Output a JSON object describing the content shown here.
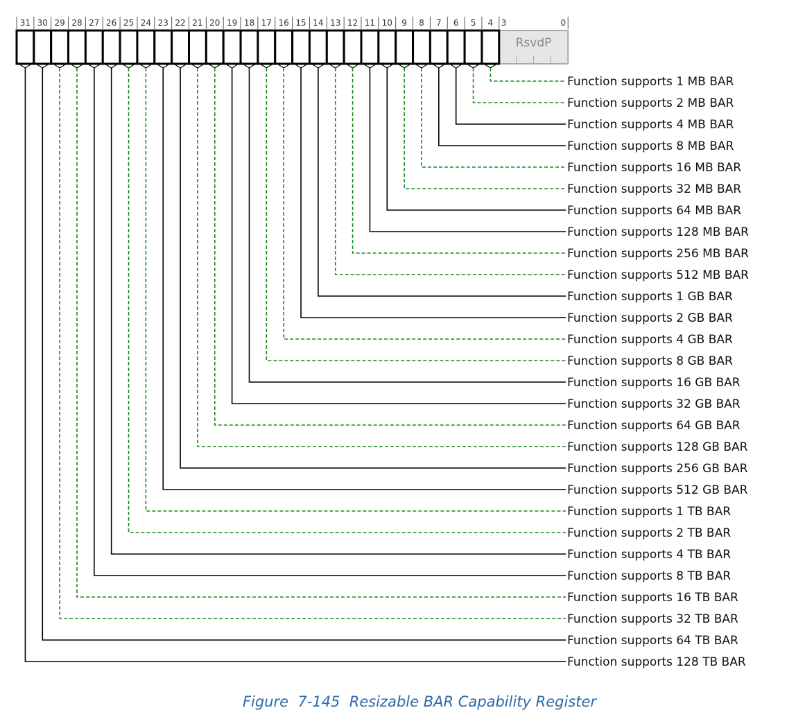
{
  "register": {
    "bit_numbers": [
      "31",
      "30",
      "29",
      "28",
      "27",
      "26",
      "25",
      "24",
      "23",
      "22",
      "21",
      "20",
      "19",
      "18",
      "17",
      "16",
      "15",
      "14",
      "13",
      "12",
      "11",
      "10",
      "9",
      "8",
      "7",
      "6",
      "5",
      "4"
    ],
    "reserved": {
      "high_bit": "3",
      "low_bit": "0",
      "label": "RsvdP"
    }
  },
  "fields": [
    {
      "bit": 4,
      "label": "Function supports 1 MB BAR",
      "style": "dashed"
    },
    {
      "bit": 5,
      "label": "Function supports 2 MB BAR",
      "style": "dashed"
    },
    {
      "bit": 6,
      "label": "Function supports 4 MB BAR",
      "style": "solid"
    },
    {
      "bit": 7,
      "label": "Function supports 8 MB BAR",
      "style": "solid"
    },
    {
      "bit": 8,
      "label": "Function supports 16 MB BAR",
      "style": "dashed"
    },
    {
      "bit": 9,
      "label": "Function supports 32 MB BAR",
      "style": "dashed"
    },
    {
      "bit": 10,
      "label": "Function supports 64 MB BAR",
      "style": "solid"
    },
    {
      "bit": 11,
      "label": "Function supports 128 MB BAR",
      "style": "solid"
    },
    {
      "bit": 12,
      "label": "Function supports 256 MB BAR",
      "style": "dashed"
    },
    {
      "bit": 13,
      "label": "Function supports 512 MB BAR",
      "style": "dashed"
    },
    {
      "bit": 14,
      "label": "Function supports 1 GB BAR",
      "style": "solid"
    },
    {
      "bit": 15,
      "label": "Function supports 2 GB BAR",
      "style": "solid"
    },
    {
      "bit": 16,
      "label": "Function supports 4 GB BAR",
      "style": "dashed"
    },
    {
      "bit": 17,
      "label": "Function supports 8 GB BAR",
      "style": "dashed"
    },
    {
      "bit": 18,
      "label": "Function supports 16 GB BAR",
      "style": "solid"
    },
    {
      "bit": 19,
      "label": "Function supports 32 GB BAR",
      "style": "solid"
    },
    {
      "bit": 20,
      "label": "Function supports 64 GB BAR",
      "style": "dashed"
    },
    {
      "bit": 21,
      "label": "Function supports 128 GB BAR",
      "style": "dashed"
    },
    {
      "bit": 22,
      "label": "Function supports 256 GB BAR",
      "style": "solid"
    },
    {
      "bit": 23,
      "label": "Function supports 512 GB BAR",
      "style": "solid"
    },
    {
      "bit": 24,
      "label": "Function supports 1 TB BAR",
      "style": "dashed"
    },
    {
      "bit": 25,
      "label": "Function supports 2 TB BAR",
      "style": "dashed"
    },
    {
      "bit": 26,
      "label": "Function supports 4 TB BAR",
      "style": "solid"
    },
    {
      "bit": 27,
      "label": "Function supports 8 TB BAR",
      "style": "solid"
    },
    {
      "bit": 28,
      "label": "Function supports 16 TB BAR",
      "style": "dashed"
    },
    {
      "bit": 29,
      "label": "Function supports 32 TB BAR",
      "style": "dashed"
    },
    {
      "bit": 30,
      "label": "Function supports 64 TB BAR",
      "style": "solid"
    },
    {
      "bit": 31,
      "label": "Function supports 128 TB BAR",
      "style": "solid"
    }
  ],
  "colors": {
    "solid_line": "#000000",
    "dashed_line": "#1a8a1a",
    "reserved_fill": "#e6e6e6",
    "reserved_text": "#8a8a8a",
    "caption": "#2f6aa6"
  },
  "caption": "Figure  7-145  Resizable BAR Capability Register"
}
